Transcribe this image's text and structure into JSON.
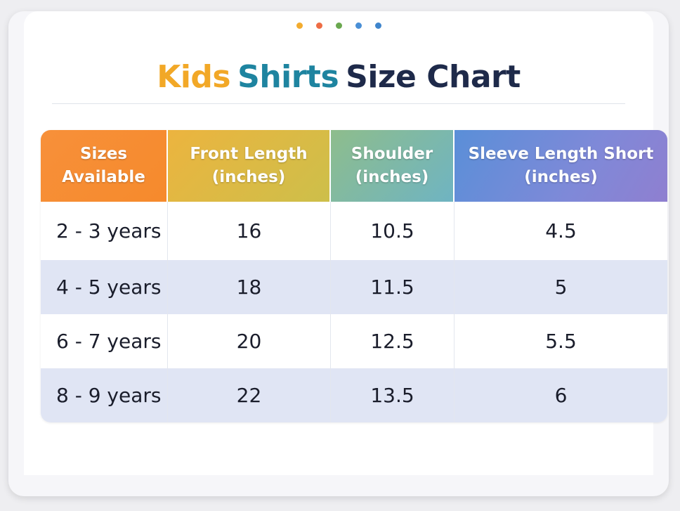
{
  "header": {
    "dots": [
      {
        "color": "#f3ac2f"
      },
      {
        "color": "#ee6d45"
      },
      {
        "color": "#6aa84f"
      },
      {
        "color": "#4a8fd6"
      },
      {
        "color": "#3f85cc"
      }
    ],
    "title": {
      "part1": "Kids",
      "part2": "Shirts",
      "part3": "Size Chart",
      "colors": {
        "part1": "#f2a827",
        "part2": "#1e84a0",
        "part3": "#1e2a4a"
      }
    }
  },
  "table": {
    "columns": [
      {
        "line1": "Sizes",
        "line2": "Available"
      },
      {
        "line1": "Front Length",
        "line2": "(inches)"
      },
      {
        "line1": "Shoulder",
        "line2": "(inches)"
      },
      {
        "line1": "Sleeve Length Short",
        "line2": "(inches)"
      }
    ],
    "rows": [
      {
        "size": "2 - 3 years",
        "front_length": "16",
        "shoulder": "10.5",
        "sleeve": "4.5"
      },
      {
        "size": "4 - 5 years",
        "front_length": "18",
        "shoulder": "11.5",
        "sleeve": "5"
      },
      {
        "size": "6 - 7 years",
        "front_length": "20",
        "shoulder": "12.5",
        "sleeve": "5.5"
      },
      {
        "size": "8 - 9 years",
        "front_length": "22",
        "shoulder": "13.5",
        "sleeve": "6"
      }
    ]
  }
}
